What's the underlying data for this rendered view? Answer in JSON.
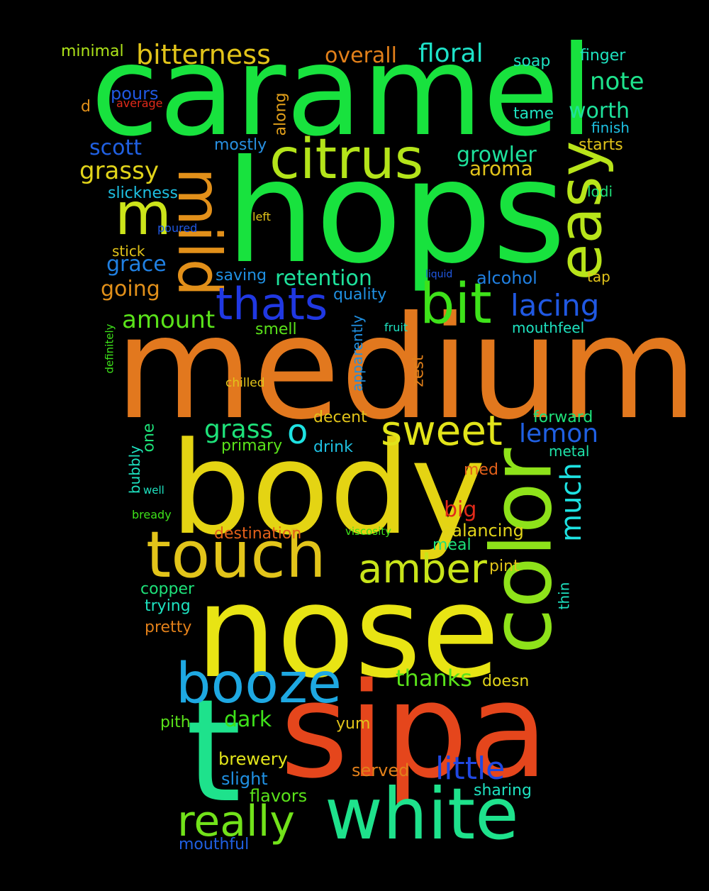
{
  "words": [
    {
      "text": "caramel",
      "color": "#18e23e"
    },
    {
      "text": "hops",
      "color": "#18e23e"
    },
    {
      "text": "medium",
      "color": "#e2781e"
    },
    {
      "text": "body",
      "color": "#e4d413"
    },
    {
      "text": "nose",
      "color": "#e8e414"
    },
    {
      "text": "sipa",
      "color": "#e5461c"
    },
    {
      "text": "t",
      "color": "#1ee28c"
    },
    {
      "text": "white",
      "color": "#1ee28c"
    },
    {
      "text": "color",
      "color": "#8ee21a"
    },
    {
      "text": "mild",
      "color": "#e2901a"
    },
    {
      "text": "easy",
      "color": "#b8e41a"
    },
    {
      "text": "citrus",
      "color": "#b4e41a"
    },
    {
      "text": "m",
      "color": "#cce41a"
    },
    {
      "text": "bit",
      "color": "#3ee21a"
    },
    {
      "text": "touch",
      "color": "#e2c41a"
    },
    {
      "text": "booze",
      "color": "#1ea8e2"
    },
    {
      "text": "thats",
      "color": "#2038e2"
    },
    {
      "text": "sweet",
      "color": "#e2e41a"
    },
    {
      "text": "amber",
      "color": "#c8e41a"
    },
    {
      "text": "really",
      "color": "#72e21a"
    },
    {
      "text": "much",
      "color": "#1ee2e2"
    },
    {
      "text": "little",
      "color": "#2048e2"
    },
    {
      "text": "lacing",
      "color": "#2058e2"
    },
    {
      "text": "bitterness",
      "color": "#e2c41a"
    },
    {
      "text": "floral",
      "color": "#1ee2c8"
    },
    {
      "text": "overall",
      "color": "#e2801a"
    },
    {
      "text": "minimal",
      "color": "#aee41a"
    },
    {
      "text": "note",
      "color": "#1ee28c"
    },
    {
      "text": "worth",
      "color": "#1ee29c"
    },
    {
      "text": "growler",
      "color": "#1ee29c"
    },
    {
      "text": "aroma",
      "color": "#e2c41a"
    },
    {
      "text": "grassy",
      "color": "#e2d41a"
    },
    {
      "text": "scott",
      "color": "#2060e2"
    },
    {
      "text": "pours",
      "color": "#2058e2"
    },
    {
      "text": "mostly",
      "color": "#2890e2"
    },
    {
      "text": "along",
      "color": "#e2a01a"
    },
    {
      "text": "retention",
      "color": "#1ee29c"
    },
    {
      "text": "amount",
      "color": "#5ae21a"
    },
    {
      "text": "grace",
      "color": "#2080e2"
    },
    {
      "text": "going",
      "color": "#e2901a"
    },
    {
      "text": "grass",
      "color": "#1ee27a"
    },
    {
      "text": "lemon",
      "color": "#2060e2"
    },
    {
      "text": "o",
      "color": "#1ee2e2"
    },
    {
      "text": "finger",
      "color": "#1ee2c0"
    },
    {
      "text": "soap",
      "color": "#1ee2c0"
    },
    {
      "text": "tame",
      "color": "#1ee2c0"
    },
    {
      "text": "finish",
      "color": "#1ec0e2"
    },
    {
      "text": "starts",
      "color": "#e2c41a"
    },
    {
      "text": "lodi",
      "color": "#1ee27a"
    },
    {
      "text": "tap",
      "color": "#e2c41a"
    },
    {
      "text": "alcohol",
      "color": "#2080e2"
    },
    {
      "text": "mouthfeel",
      "color": "#1ee2c0"
    },
    {
      "text": "liquid",
      "color": "#2058e2"
    },
    {
      "text": "fruit",
      "color": "#1ee2c0"
    },
    {
      "text": "quality",
      "color": "#2090e2"
    },
    {
      "text": "saving",
      "color": "#2090e2"
    },
    {
      "text": "smell",
      "color": "#5ae21a"
    },
    {
      "text": "apparently",
      "color": "#2090e2"
    },
    {
      "text": "zest",
      "color": "#e2801a"
    },
    {
      "text": "definitely",
      "color": "#3ee21a"
    },
    {
      "text": "chilled",
      "color": "#e2c41a"
    },
    {
      "text": "stick",
      "color": "#e2c41a"
    },
    {
      "text": "left",
      "color": "#e2c41a"
    },
    {
      "text": "poured",
      "color": "#2058e2"
    },
    {
      "text": "slickness",
      "color": "#1ec0e2"
    },
    {
      "text": "d",
      "color": "#e2901a"
    },
    {
      "text": "average",
      "color": "#e22a1a"
    },
    {
      "text": "decent",
      "color": "#e2c41a"
    },
    {
      "text": "primary",
      "color": "#5ae21a"
    },
    {
      "text": "drink",
      "color": "#1ec0e2"
    },
    {
      "text": "forward",
      "color": "#1ee27a"
    },
    {
      "text": "metal",
      "color": "#1ee2a8"
    },
    {
      "text": "med",
      "color": "#e2601a"
    },
    {
      "text": "big",
      "color": "#e22a1a"
    },
    {
      "text": "one",
      "color": "#1ee27a"
    },
    {
      "text": "bubbly",
      "color": "#1ee2c0"
    },
    {
      "text": "well",
      "color": "#1ee2c0"
    },
    {
      "text": "bready",
      "color": "#3ee21a"
    },
    {
      "text": "destination",
      "color": "#e2601a"
    },
    {
      "text": "viscosity",
      "color": "#3ee21a"
    },
    {
      "text": "balancing",
      "color": "#e2d41a"
    },
    {
      "text": "meal",
      "color": "#1ee27a"
    },
    {
      "text": "pint",
      "color": "#e2c41a"
    },
    {
      "text": "copper",
      "color": "#1ee27a"
    },
    {
      "text": "trying",
      "color": "#1ee2c0"
    },
    {
      "text": "pretty",
      "color": "#e2801a"
    },
    {
      "text": "thin",
      "color": "#1ee2c0"
    },
    {
      "text": "thanks",
      "color": "#5ae21a"
    },
    {
      "text": "doesn",
      "color": "#e2d41a"
    },
    {
      "text": "dark",
      "color": "#3ee21a"
    },
    {
      "text": "pith",
      "color": "#5ae21a"
    },
    {
      "text": "yum",
      "color": "#e2c41a"
    },
    {
      "text": "brewery",
      "color": "#e2e41a"
    },
    {
      "text": "slight",
      "color": "#2090e2"
    },
    {
      "text": "served",
      "color": "#e2801a"
    },
    {
      "text": "sharing",
      "color": "#1ee2c0"
    },
    {
      "text": "flavors",
      "color": "#5ae21a"
    },
    {
      "text": "mouthful",
      "color": "#2060e2"
    }
  ]
}
